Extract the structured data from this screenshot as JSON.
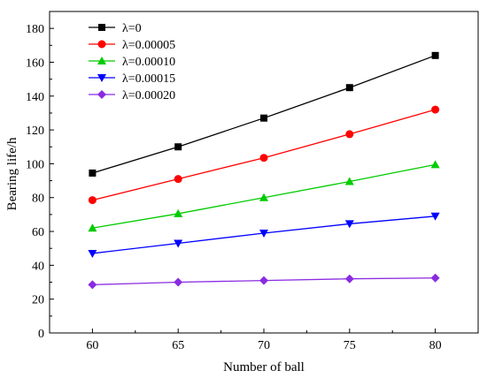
{
  "chart_data": {
    "type": "line",
    "title": "",
    "xlabel": "Number of ball",
    "ylabel": "Bearing life/h",
    "x": [
      60,
      65,
      70,
      75,
      80
    ],
    "xlim": [
      57.5,
      82.5
    ],
    "ylim": [
      0,
      190
    ],
    "xticks": [
      60,
      65,
      70,
      75,
      80
    ],
    "yticks": [
      0,
      20,
      40,
      60,
      80,
      100,
      120,
      140,
      160,
      180
    ],
    "grid": false,
    "legend_position": "top-left",
    "series": [
      {
        "name": "λ=0",
        "values": [
          94.5,
          110,
          127,
          145,
          164
        ],
        "color": "#000000",
        "marker": "square"
      },
      {
        "name": "λ=0.00005",
        "values": [
          78.5,
          91,
          103.5,
          117.5,
          132
        ],
        "color": "#ff0000",
        "marker": "circle"
      },
      {
        "name": "λ=0.00010",
        "values": [
          62,
          70.5,
          80,
          89.5,
          99.5
        ],
        "color": "#00cc00",
        "marker": "triangle-up"
      },
      {
        "name": "λ=0.00015",
        "values": [
          47,
          53,
          59,
          64.5,
          69
        ],
        "color": "#0000ff",
        "marker": "triangle-down"
      },
      {
        "name": "λ=0.00020",
        "values": [
          28.5,
          30,
          31,
          32,
          32.5
        ],
        "color": "#8a2be2",
        "marker": "diamond"
      }
    ]
  }
}
